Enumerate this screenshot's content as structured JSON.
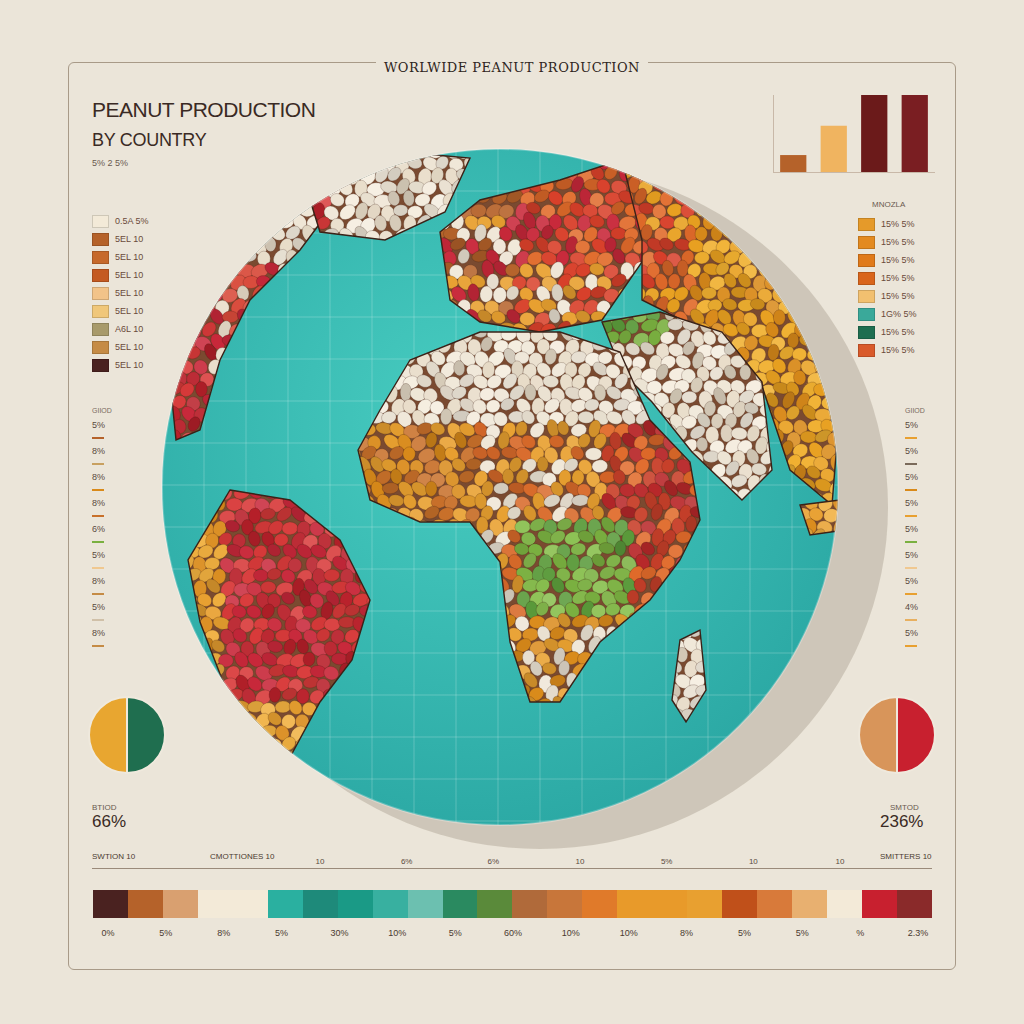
{
  "header": {
    "title": "WORLWIDE PEANUT PRODUCTION",
    "heading": "PEANUT PRODUCTION",
    "subheading": "BY COUNTRY",
    "note": "5% 2 5%"
  },
  "legend_left": {
    "entries": [
      {
        "label": "0.5A 5%",
        "color": "#f3ead8"
      },
      {
        "label": "5EL 10",
        "color": "#b5622a"
      },
      {
        "label": "5EL 10",
        "color": "#c6692b"
      },
      {
        "label": "5EL 10",
        "color": "#c45a22"
      },
      {
        "label": "5EL 10",
        "color": "#f2c389"
      },
      {
        "label": "5EL 10",
        "color": "#f0c77a"
      },
      {
        "label": "A6L 10",
        "color": "#a89a6a"
      },
      {
        "label": "5EL 10",
        "color": "#c58b45"
      },
      {
        "label": "5EL 10",
        "color": "#4a2220"
      }
    ]
  },
  "legend_right": {
    "title": "MNOZLA",
    "entries": [
      {
        "label": "15% 5%",
        "color": "#e59a2a"
      },
      {
        "label": "15% 5%",
        "color": "#e38a20"
      },
      {
        "label": "15% 5%",
        "color": "#e07a1a"
      },
      {
        "label": "15% 5%",
        "color": "#d9651c"
      },
      {
        "label": "15% 5%",
        "color": "#f2c070"
      },
      {
        "label": "1G% 5%",
        "color": "#3aa99a"
      },
      {
        "label": "15% 5%",
        "color": "#1e6e50"
      },
      {
        "label": "15% 5%",
        "color": "#d95a2a"
      }
    ]
  },
  "scale_left": {
    "title": "GIIOD",
    "entries": [
      {
        "label": "5%",
        "color": "#b5622a"
      },
      {
        "label": "8%",
        "color": "#c8a060"
      },
      {
        "label": "8%",
        "color": "#d98a1a"
      },
      {
        "label": "8%",
        "color": "#c8702a"
      },
      {
        "label": "6%",
        "color": "#7ab040"
      },
      {
        "label": "5%",
        "color": "#f0c890"
      },
      {
        "label": "8%",
        "color": "#c58b45"
      },
      {
        "label": "5%",
        "color": "#d0c0a8"
      },
      {
        "label": "8%",
        "color": "#c58b45"
      }
    ]
  },
  "scale_right": {
    "title": "GIIOD",
    "entries": [
      {
        "label": "5%",
        "color": "#e8a030"
      },
      {
        "label": "5%",
        "color": "#7a6a5a"
      },
      {
        "label": "5%",
        "color": "#d98a1a"
      },
      {
        "label": "5%",
        "color": "#e8a030"
      },
      {
        "label": "5%",
        "color": "#7ab040"
      },
      {
        "label": "5%",
        "color": "#f0c890"
      },
      {
        "label": "5%",
        "color": "#e8a030"
      },
      {
        "label": "4%",
        "color": "#e8b060"
      },
      {
        "label": "5%",
        "color": "#e8a030"
      }
    ]
  },
  "chart_data": [
    {
      "type": "bar",
      "categories": [
        null,
        null,
        null,
        null
      ],
      "values": [
        22,
        60,
        100,
        100
      ],
      "colors": [
        "#b5622a",
        "#f0b460",
        "#6b1a1a",
        "#7a1e22"
      ],
      "ylim": [
        0,
        100
      ],
      "yticks": [
        0,
        50,
        100
      ],
      "grid": false,
      "tick_labels": false
    },
    {
      "type": "pie",
      "title": "BTIOD",
      "annotation": "66%",
      "values": [
        50,
        50
      ],
      "colors": [
        "#1f6e4f",
        "#e8a630"
      ]
    },
    {
      "type": "pie",
      "title": "SMTOD",
      "annotation": "236%",
      "values": [
        50,
        50
      ],
      "colors": [
        "#c8202f",
        "#d8955a"
      ]
    }
  ],
  "strip": {
    "captions": [
      "SWTION 10",
      "CMOTTIONES 10",
      "SMITTERS 10"
    ],
    "marks": [
      "10",
      "6%",
      "6%",
      "10",
      "5%",
      "10",
      "10"
    ],
    "colors": [
      "#4a2220",
      "#b5622a",
      "#d9a070",
      "#f3ead8",
      "#f3ead8",
      "#2ab0a0",
      "#1e8a7a",
      "#1a9a86",
      "#38b0a0",
      "#6cc0b0",
      "#2a8a60",
      "#5a8a3a",
      "#b06a3a",
      "#c8763a",
      "#e07a2a",
      "#e89a2a",
      "#e89a2a",
      "#e8a030",
      "#c0501a",
      "#d87a3a",
      "#e8b070",
      "#f3ead8",
      "#c8202f",
      "#8a2a2a"
    ],
    "labels": [
      "0%",
      "5%",
      "8%",
      "5%",
      "30%",
      "10%",
      "5%",
      "60%",
      "10%",
      "10%",
      "8%",
      "5%",
      "5%",
      "%",
      "2.3%"
    ]
  }
}
